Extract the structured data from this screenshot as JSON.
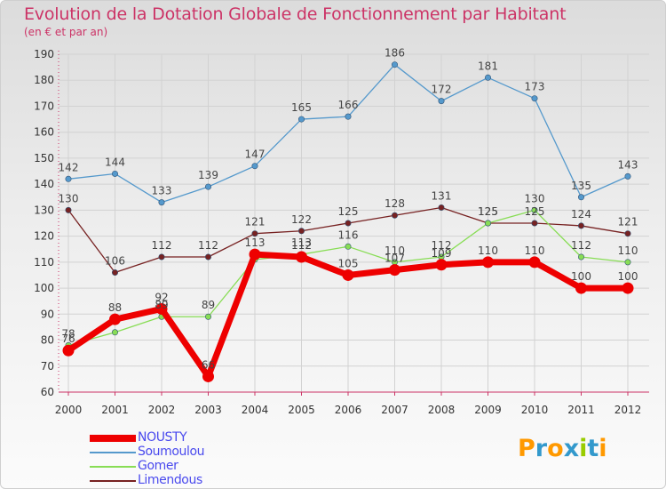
{
  "title": "Evolution de la Dotation Globale de Fonctionnement par Habitant",
  "subtitle": "(en € et par an)",
  "logo": {
    "text": "Proxiti",
    "letters": [
      "P",
      "r",
      "o",
      "x",
      "i",
      "t",
      "i"
    ],
    "colors": [
      "#ff9900",
      "#3399cc",
      "#ff9900",
      "#3399cc",
      "#99cc00",
      "#3399cc",
      "#ff9900"
    ]
  },
  "chart_data": {
    "type": "line",
    "title": "Evolution de la Dotation Globale de Fonctionnement par Habitant",
    "subtitle": "(en € et par an)",
    "xlabel": "",
    "ylabel": "",
    "x": [
      "2000",
      "2001",
      "2002",
      "2003",
      "2004",
      "2005",
      "2006",
      "2007",
      "2008",
      "2009",
      "2010",
      "2011",
      "2012"
    ],
    "ylim": [
      60,
      190
    ],
    "yticks": [
      60,
      70,
      80,
      90,
      100,
      110,
      120,
      130,
      140,
      150,
      160,
      170,
      180,
      190
    ],
    "grid": true,
    "legend_position": "bottom-left",
    "series": [
      {
        "name": "Soumoulou",
        "color": "#5599cc",
        "values": [
          142,
          144,
          133,
          139,
          147,
          165,
          166,
          186,
          172,
          181,
          173,
          135,
          143
        ],
        "labels": [
          "142",
          "144",
          "133",
          "139",
          "147",
          "165",
          "166",
          "186",
          "172",
          "181",
          "173",
          "135",
          "143"
        ]
      },
      {
        "name": "Limendous",
        "color": "#772222",
        "values": [
          130,
          106,
          112,
          112,
          121,
          122,
          125,
          128,
          131,
          125,
          125,
          124,
          121
        ],
        "labels": [
          "130",
          "106",
          "112",
          "112",
          "121",
          "122",
          "125",
          "128",
          "131",
          "125",
          "125",
          "124",
          "121"
        ]
      },
      {
        "name": "Gomer",
        "color": "#88dd55",
        "values": [
          78,
          83,
          89,
          89,
          111,
          113,
          116,
          110,
          112,
          125,
          130,
          112,
          110
        ],
        "labels": [
          "78",
          "",
          "89",
          "89",
          "",
          "113",
          "116",
          "110",
          "112",
          "125",
          "130",
          "112",
          "110"
        ]
      },
      {
        "name": "NOUSTY",
        "color": "#ee0000",
        "values": [
          76,
          88,
          92,
          66,
          113,
          112,
          105,
          107,
          109,
          110,
          110,
          100,
          100
        ],
        "labels": [
          "76",
          "88",
          "92",
          "66",
          "113",
          "112",
          "105",
          "107",
          "109",
          "110",
          "110",
          "100",
          "100"
        ]
      }
    ]
  },
  "legend": [
    {
      "name": "NOUSTY",
      "color": "#ee0000",
      "weight": "thick"
    },
    {
      "name": "Soumoulou",
      "color": "#5599cc",
      "weight": "thin"
    },
    {
      "name": "Gomer",
      "color": "#88dd55",
      "weight": "thin"
    },
    {
      "name": "Limendous",
      "color": "#772222",
      "weight": "thin"
    }
  ]
}
